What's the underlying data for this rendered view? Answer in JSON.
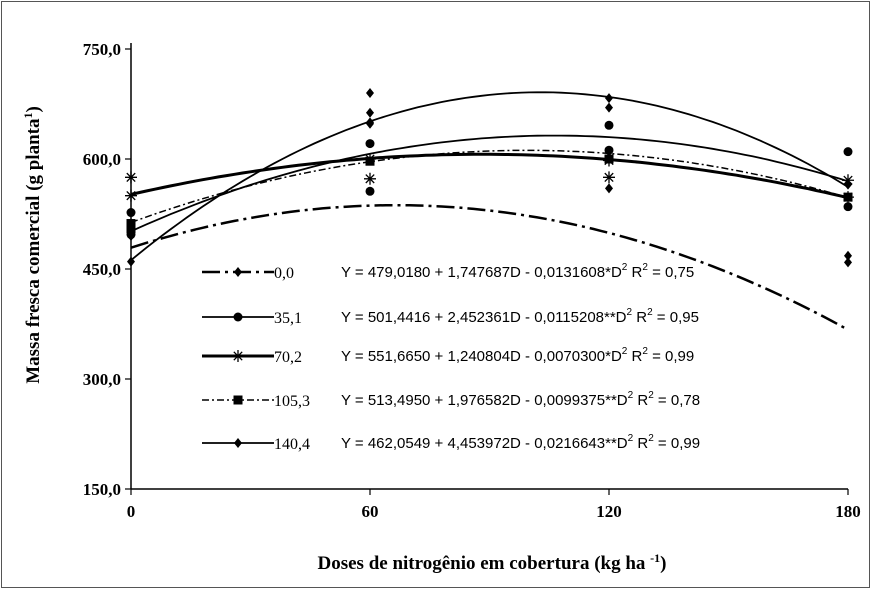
{
  "chart_data": {
    "type": "line",
    "title": "",
    "xlabel": "Doses de nitrogênio em cobertura (kg ha-1)",
    "ylabel": "Massa fresca comercial (g planta-1)",
    "xlim": [
      0,
      180
    ],
    "ylim": [
      150,
      750
    ],
    "x_ticks": [
      0,
      60,
      120,
      180
    ],
    "x_tick_labels": [
      "0",
      "60",
      "120",
      "180"
    ],
    "y_ticks": [
      150,
      300,
      450,
      600,
      750
    ],
    "y_tick_labels": [
      "150,0",
      "300,0",
      "450,0",
      "600,0",
      "750,0"
    ],
    "grid": false,
    "legend_position": "center",
    "series": [
      {
        "name": "0,0",
        "marker": "diamond",
        "line_style": "long-dash-dot",
        "coefficients": [
          479.018,
          1.747687,
          -0.0131608
        ],
        "equation": "Y = 479,0180 + 1,747687D - 0,0131608*D",
        "r2": "R",
        "r2_value": " = 0,75",
        "points": [
          [
            0,
            495
          ],
          [
            0,
            510
          ],
          [
            60,
            690
          ],
          [
            60,
            663
          ],
          [
            60,
            650
          ],
          [
            120,
            560
          ],
          [
            120,
            600
          ],
          [
            180,
            468
          ],
          [
            180,
            459
          ]
        ]
      },
      {
        "name": "35,1",
        "marker": "circle",
        "line_style": "solid",
        "coefficients": [
          501.4416,
          2.452361,
          -0.0115208
        ],
        "equation": "Y = 501,4416 + 2,452361D - 0,0115208**D",
        "r2": "R",
        "r2_value": " = 0,95",
        "points": [
          [
            0,
            527
          ],
          [
            0,
            497
          ],
          [
            60,
            556
          ],
          [
            60,
            621
          ],
          [
            120,
            646
          ],
          [
            120,
            612
          ],
          [
            180,
            610
          ],
          [
            180,
            535
          ]
        ]
      },
      {
        "name": "70,2",
        "marker": "star",
        "line_style": "solid-thick",
        "coefficients": [
          551.665,
          1.240804,
          -0.00703
        ],
        "equation": "Y = 551,6650 + 1,240804D - 0,0070300*D",
        "r2": "R",
        "r2_value": " = 0,99",
        "points": [
          [
            0,
            575
          ],
          [
            0,
            550
          ],
          [
            60,
            573
          ],
          [
            60,
            600
          ],
          [
            120,
            575
          ],
          [
            120,
            598
          ],
          [
            180,
            571
          ],
          [
            180,
            548
          ]
        ]
      },
      {
        "name": "105,3",
        "marker": "square",
        "line_style": "short-dash-dot",
        "coefficients": [
          513.495,
          1.976582,
          -0.0099375
        ],
        "equation": "Y = 513,4950 + 1,976582D - 0,0099375**D",
        "r2": "R",
        "r2_value": " = 0,78",
        "points": [
          [
            0,
            505
          ],
          [
            0,
            512
          ],
          [
            60,
            597
          ],
          [
            120,
            600
          ],
          [
            180,
            548
          ]
        ]
      },
      {
        "name": "140,4",
        "marker": "diamond",
        "line_style": "solid",
        "coefficients": [
          462.0549,
          4.453972,
          -0.0216643
        ],
        "equation": "Y = 462,0549 + 4,453972D - 0,0216643**D",
        "r2": "R",
        "r2_value": " = 0,99",
        "points": [
          [
            0,
            460
          ],
          [
            60,
            648
          ],
          [
            120,
            683
          ],
          [
            120,
            670
          ],
          [
            180,
            565
          ]
        ]
      }
    ],
    "equation_sup": "2",
    "label_sup": "-1",
    "ylabel_sup": "1"
  }
}
